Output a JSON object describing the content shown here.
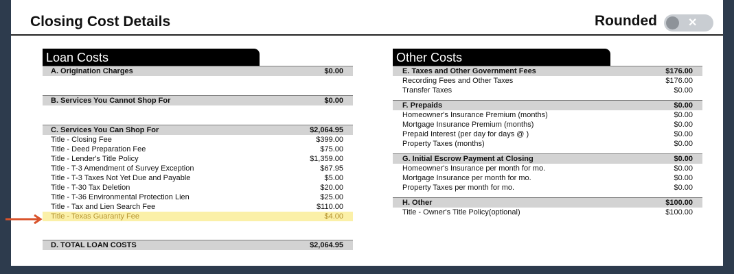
{
  "header": {
    "title": "Closing Cost Details",
    "rounded_label": "Rounded",
    "toggle_x": "✕"
  },
  "loan_costs": {
    "title": "Loan Costs",
    "a": {
      "label": "A. Origination Charges",
      "value": "$0.00"
    },
    "b": {
      "label": "B. Services You Cannot Shop For",
      "value": "$0.00"
    },
    "c": {
      "label": "C. Services You Can Shop For",
      "value": "$2,064.95",
      "items": [
        {
          "label": "Title - Closing Fee",
          "value": "$399.00"
        },
        {
          "label": "Title - Deed Preparation Fee",
          "value": "$75.00"
        },
        {
          "label": "Title - Lender's Title Policy",
          "value": "$1,359.00"
        },
        {
          "label": "Title - T-3 Amendment of Survey Exception",
          "value": "$67.95"
        },
        {
          "label": "Title - T-3 Taxes Not Yet Due and Payable",
          "value": "$5.00"
        },
        {
          "label": "Title - T-30 Tax Deletion",
          "value": "$20.00"
        },
        {
          "label": "Title - T-36 Environmental Protection Lien",
          "value": "$25.00"
        },
        {
          "label": "Title - Tax and Lien Search Fee",
          "value": "$110.00"
        },
        {
          "label": "Title - Texas Guaranty Fee",
          "value": "$4.00"
        }
      ]
    },
    "d": {
      "label": "D. TOTAL LOAN COSTS",
      "value": "$2,064.95"
    }
  },
  "other_costs": {
    "title": "Other Costs",
    "e": {
      "label": "E. Taxes and Other Government Fees",
      "value": "$176.00",
      "items": [
        {
          "label": "Recording Fees and Other Taxes",
          "value": "$176.00"
        },
        {
          "label": "Transfer Taxes",
          "value": "$0.00"
        }
      ]
    },
    "f": {
      "label": "F. Prepaids",
      "value": "$0.00",
      "items": [
        {
          "label": "Homeowner's Insurance Premium (months)",
          "value": "$0.00"
        },
        {
          "label": "Mortgage Insurance Premium (months)",
          "value": "$0.00"
        },
        {
          "label": "Prepaid Interest (per day for days @ )",
          "value": "$0.00"
        },
        {
          "label": "Property Taxes (months)",
          "value": "$0.00"
        }
      ]
    },
    "g": {
      "label": "G. Initial Escrow Payment at Closing",
      "value": "$0.00",
      "items": [
        {
          "label": "Homeowner's Insurance per month for mo.",
          "value": "$0.00"
        },
        {
          "label": "Mortgage Insurance per month for mo.",
          "value": "$0.00"
        },
        {
          "label": "Property Taxes per month for mo.",
          "value": "$0.00"
        }
      ]
    },
    "h": {
      "label": "H. Other",
      "value": "$100.00",
      "items": [
        {
          "label": "Title - Owner's Title Policy(optional)",
          "value": "$100.00"
        }
      ]
    }
  },
  "colors": {
    "background": "#2d3b4d",
    "highlight_fill": "#fbf0a8",
    "highlight_text": "#b5932e",
    "arrow": "#d9532b",
    "section_header": "#d3d3d3"
  },
  "icons": {
    "annotation_arrow": "arrow-right-icon"
  }
}
